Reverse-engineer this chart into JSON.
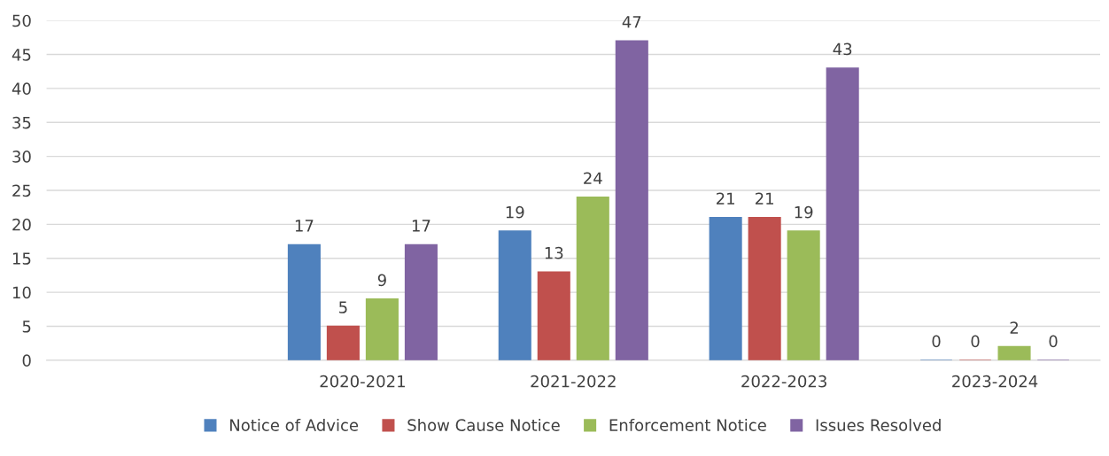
{
  "chart_data": {
    "type": "bar",
    "categories": [
      null,
      "2020-2021",
      "2021-2022",
      "2022-2023",
      "2023-2024"
    ],
    "series": [
      {
        "name": "Notice of Advice",
        "color": "#4f81bd",
        "values": [
          null,
          17,
          19,
          21,
          0
        ]
      },
      {
        "name": "Show Cause Notice",
        "color": "#c0504d",
        "values": [
          null,
          5,
          13,
          21,
          0
        ]
      },
      {
        "name": "Enforcement Notice",
        "color": "#9bbb59",
        "values": [
          null,
          9,
          24,
          19,
          2
        ]
      },
      {
        "name": "Issues Resolved",
        "color": "#8064a2",
        "values": [
          null,
          17,
          47,
          43,
          0
        ]
      }
    ],
    "ylim": [
      0,
      50
    ],
    "yticks": [
      0,
      5,
      10,
      15,
      20,
      25,
      30,
      35,
      40,
      45,
      50
    ],
    "grid": "y",
    "legend": "bottom",
    "data_labels": true
  }
}
